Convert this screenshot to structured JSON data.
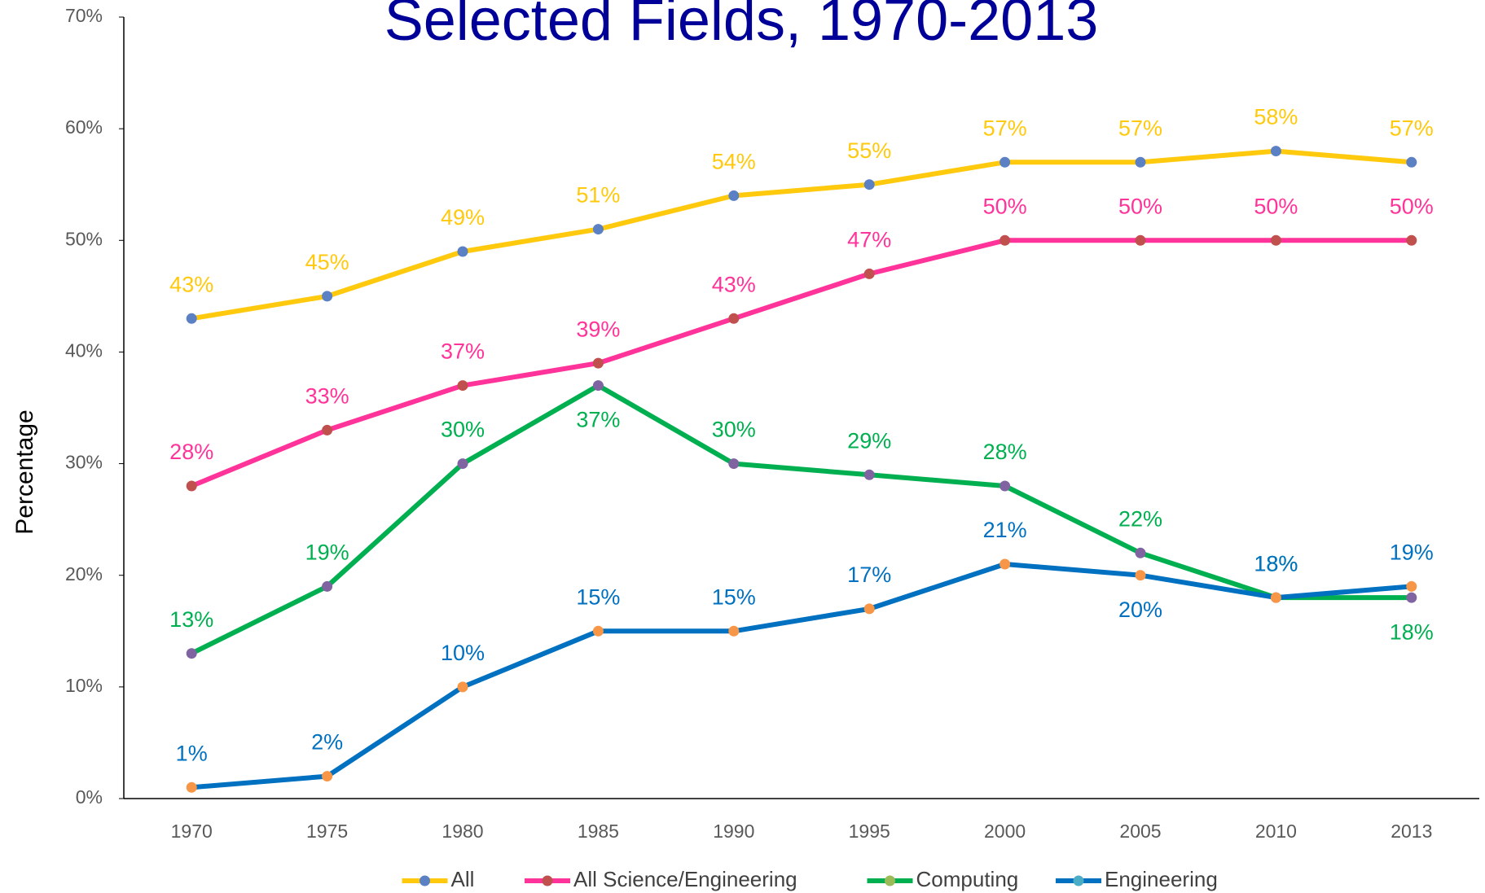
{
  "chart_data": {
    "type": "line",
    "title": "Selected Fields, 1970-2013",
    "y_label": "Percentage",
    "categories": [
      "1970",
      "1975",
      "1980",
      "1985",
      "1990",
      "1995",
      "2000",
      "2005",
      "2010",
      "2013"
    ],
    "ylim": [
      0,
      70
    ],
    "yticks": [
      {
        "value": 0,
        "label": "0%"
      },
      {
        "value": 10,
        "label": "10%"
      },
      {
        "value": 20,
        "label": "20%"
      },
      {
        "value": 30,
        "label": "30%"
      },
      {
        "value": 40,
        "label": "40%"
      },
      {
        "value": 50,
        "label": "50%"
      },
      {
        "value": 60,
        "label": "60%"
      },
      {
        "value": 70,
        "label": "70%"
      }
    ],
    "grid": false,
    "legend": "bottom",
    "series": [
      {
        "name": "All",
        "color": "#ffc90e",
        "marker_color": "#5b80c4",
        "legend_marker_color": "#5b80c4",
        "values": [
          43,
          45,
          49,
          51,
          54,
          55,
          57,
          57,
          58,
          57
        ],
        "value_labels": [
          "43%",
          "45%",
          "49%",
          "51%",
          "54%",
          "55%",
          "57%",
          "57%",
          "58%",
          "57%"
        ]
      },
      {
        "name": "All Science/Engineering",
        "color": "#ff3399",
        "marker_color": "#c0504d",
        "legend_marker_color": "#c0504d",
        "values": [
          28,
          33,
          37,
          39,
          43,
          47,
          50,
          50,
          50,
          50
        ],
        "value_labels": [
          "28%",
          "33%",
          "37%",
          "39%",
          "43%",
          "47%",
          "50%",
          "50%",
          "50%",
          "50%"
        ]
      },
      {
        "name": "Computing",
        "color": "#00b050",
        "marker_color": "#8064a2",
        "legend_marker_color": "#9bbb59",
        "values": [
          13,
          19,
          30,
          37,
          30,
          29,
          28,
          22,
          18,
          18
        ],
        "value_labels": [
          "13%",
          "19%",
          "30%",
          "37%",
          "30%",
          "29%",
          "28%",
          "22%",
          "18%",
          "18%"
        ]
      },
      {
        "name": "Engineering",
        "color": "#0070c0",
        "marker_color": "#f79646",
        "legend_marker_color": "#4bacc6",
        "values": [
          1,
          2,
          10,
          15,
          15,
          17,
          21,
          20,
          18,
          19
        ],
        "value_labels": [
          "1%",
          "2%",
          "10%",
          "15%",
          "15%",
          "17%",
          "21%",
          "20%",
          "18%",
          "19%"
        ]
      }
    ]
  }
}
